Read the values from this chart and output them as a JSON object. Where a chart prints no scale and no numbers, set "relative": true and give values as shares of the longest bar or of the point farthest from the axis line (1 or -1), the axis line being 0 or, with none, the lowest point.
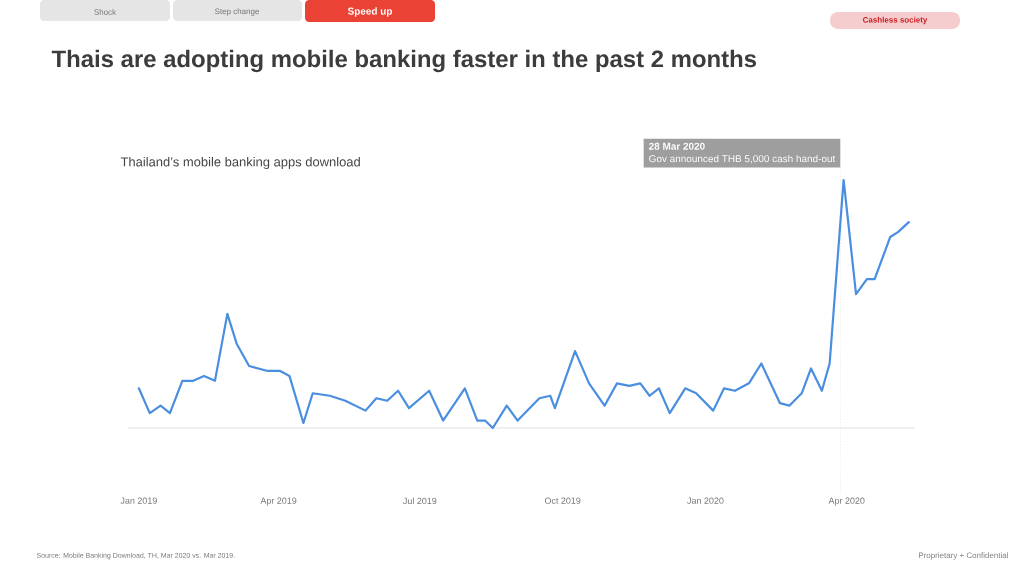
{
  "chart_data": {
    "type": "line",
    "title": "Thais are adopting mobile banking faster in the past 2 months",
    "subtitle": "Thailand’s mobile banking apps download",
    "relative": true,
    "grid": false,
    "marker": "none",
    "line_style": "solid",
    "x": [
      "2019-01-01",
      "2019-01-08",
      "2019-01-15",
      "2019-01-21",
      "2019-01-29",
      "2019-02-05",
      "2019-02-12",
      "2019-02-19",
      "2019-02-27",
      "2019-03-05",
      "2019-03-13",
      "2019-03-25",
      "2019-04-02",
      "2019-04-08",
      "2019-04-17",
      "2019-04-23",
      "2019-05-04",
      "2019-05-14",
      "2019-05-27",
      "2019-06-03",
      "2019-06-10",
      "2019-06-17",
      "2019-06-24",
      "2019-07-07",
      "2019-07-16",
      "2019-07-30",
      "2019-08-07",
      "2019-08-12",
      "2019-08-17",
      "2019-08-26",
      "2019-09-02",
      "2019-09-16",
      "2019-09-23",
      "2019-09-26",
      "2019-10-09",
      "2019-10-18",
      "2019-10-28",
      "2019-11-05",
      "2019-11-13",
      "2019-11-20",
      "2019-11-26",
      "2019-12-02",
      "2019-12-09",
      "2019-12-19",
      "2019-12-26",
      "2020-01-06",
      "2020-01-13",
      "2020-01-20",
      "2020-01-29",
      "2020-02-06",
      "2020-02-18",
      "2020-02-24",
      "2020-03-03",
      "2020-03-09",
      "2020-03-16",
      "2020-03-21",
      "2020-03-30",
      "2020-04-07",
      "2020-04-14",
      "2020-04-19",
      "2020-04-29",
      "2020-05-04",
      "2020-05-11"
    ],
    "series": [
      {
        "color": "#4a8ee0",
        "values": [
          0.16,
          0.06,
          0.09,
          0.06,
          0.19,
          0.19,
          0.21,
          0.19,
          0.46,
          0.34,
          0.25,
          0.23,
          0.23,
          0.21,
          0.02,
          0.14,
          0.13,
          0.11,
          0.07,
          0.12,
          0.11,
          0.15,
          0.08,
          0.15,
          0.03,
          0.16,
          0.03,
          0.03,
          0,
          0.09,
          0.03,
          0.12,
          0.13,
          0.08,
          0.31,
          0.18,
          0.09,
          0.18,
          0.17,
          0.18,
          0.13,
          0.16,
          0.06,
          0.16,
          0.14,
          0.07,
          0.16,
          0.15,
          0.18,
          0.26,
          0.1,
          0.09,
          0.14,
          0.24,
          0.15,
          0.26,
          1,
          0.54,
          0.6,
          0.6,
          0.77,
          0.79,
          0.83
        ]
      }
    ],
    "xlim": [
      "2018-12-25",
      "2020-05-15"
    ],
    "xticks": [
      {
        "value": "2019-01-01",
        "label": "Jan 2019"
      },
      {
        "value": "2019-04-01",
        "label": "Apr 2019"
      },
      {
        "value": "2019-07-01",
        "label": "Jul 2019"
      },
      {
        "value": "2019-10-01",
        "label": "Oct 2019"
      },
      {
        "value": "2020-01-01",
        "label": "Jan 2020"
      },
      {
        "value": "2020-04-01",
        "label": "Apr 2020"
      }
    ],
    "ref_lines": [
      {
        "axis": "x",
        "value": "2020-03-28",
        "label": "28 Mar 2020",
        "color": "#e0e0e0",
        "line_style": "dotted"
      }
    ],
    "annotations": [
      "Gov announced THB 5,000 cash hand-out",
      "Shock",
      "Step change",
      "Speed up",
      "Cashless society",
      "Source: Mobile Banking Download, TH, Mar 2020 vs. Mar 2019.",
      "Proprietary + Confidential"
    ]
  }
}
